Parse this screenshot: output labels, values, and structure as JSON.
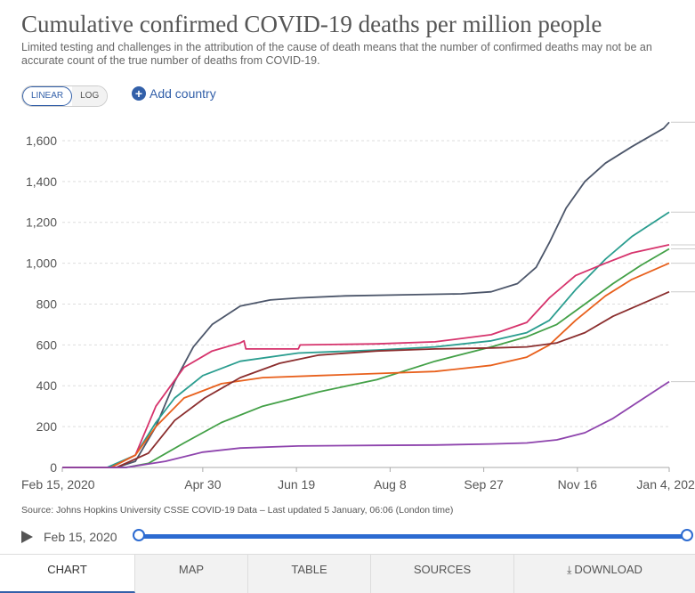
{
  "header": {
    "title": "Cumulative confirmed COVID-19 deaths per million people",
    "subtitle": "Limited testing and challenges in the attribution of the cause of death means that the number of confirmed deaths may not be an accurate count of the true number of deaths from COVID-19."
  },
  "controls": {
    "linear_label": "LINEAR",
    "log_label": "LOG",
    "add_country_label": "Add country",
    "active_scale": "linear"
  },
  "source_text": "Source: Johns Hopkins University CSSE COVID-19 Data – Last updated 5 January, 06:06 (London time)",
  "timeline": {
    "start_label": "Feb 15, 2020",
    "range_start": "2020-02-15",
    "range_end": "2021-01-04"
  },
  "tabs": [
    {
      "label": "CHART",
      "active": true
    },
    {
      "label": "MAP",
      "active": false
    },
    {
      "label": "TABLE",
      "active": false
    },
    {
      "label": "SOURCES",
      "active": false
    },
    {
      "label": "DOWNLOAD",
      "active": false
    }
  ],
  "colors": {
    "accent": "#3360a9",
    "grid": "#dddddd"
  },
  "chart_data": {
    "type": "line",
    "title": "Cumulative confirmed COVID-19 deaths per million people",
    "xlabel": "",
    "ylabel": "",
    "x_range": [
      "2020-02-15",
      "2021-01-04"
    ],
    "ylim": [
      0,
      1700
    ],
    "y_ticks": [
      0,
      200,
      400,
      600,
      800,
      1000,
      1200,
      1400,
      1600
    ],
    "y_tick_labels": [
      "0",
      "200",
      "400",
      "600",
      "800",
      "1,000",
      "1,200",
      "1,400",
      "1,600"
    ],
    "x_tick_labels": [
      "Feb 15, 2020",
      "Apr 30",
      "Jun 19",
      "Aug 8",
      "Sep 27",
      "Nov 16",
      "Jan 4, 2021"
    ],
    "x_tick_dates": [
      "2020-02-15",
      "2020-04-30",
      "2020-06-19",
      "2020-08-08",
      "2020-09-27",
      "2020-11-16",
      "2021-01-04"
    ],
    "grid": true,
    "series": [
      {
        "color": "#4c566a",
        "x": [
          "2020-02-15",
          "2020-03-15",
          "2020-03-25",
          "2020-04-05",
          "2020-04-15",
          "2020-04-25",
          "2020-05-05",
          "2020-05-20",
          "2020-06-05",
          "2020-06-20",
          "2020-07-15",
          "2020-08-15",
          "2020-09-15",
          "2020-10-01",
          "2020-10-15",
          "2020-10-25",
          "2020-11-01",
          "2020-11-10",
          "2020-11-20",
          "2020-12-01",
          "2020-12-15",
          "2021-01-01",
          "2021-01-04"
        ],
        "y": [
          0,
          0,
          30,
          200,
          420,
          590,
          700,
          790,
          820,
          830,
          840,
          845,
          850,
          860,
          900,
          980,
          1100,
          1270,
          1400,
          1490,
          1570,
          1660,
          1690
        ]
      },
      {
        "color": "#2a9d8f",
        "x": [
          "2020-02-15",
          "2020-03-10",
          "2020-03-25",
          "2020-04-05",
          "2020-04-15",
          "2020-04-30",
          "2020-05-20",
          "2020-06-20",
          "2020-08-01",
          "2020-09-01",
          "2020-10-01",
          "2020-10-20",
          "2020-11-01",
          "2020-11-15",
          "2020-12-01",
          "2020-12-15",
          "2021-01-04"
        ],
        "y": [
          0,
          0,
          60,
          220,
          340,
          450,
          520,
          560,
          575,
          590,
          620,
          660,
          720,
          870,
          1020,
          1130,
          1250
        ]
      },
      {
        "color": "#d6336c",
        "x": [
          "2020-02-15",
          "2020-03-12",
          "2020-03-25",
          "2020-04-05",
          "2020-04-20",
          "2020-05-05",
          "2020-05-20",
          "2020-05-22",
          "2020-05-23",
          "2020-06-20",
          "2020-06-21",
          "2020-08-01",
          "2020-09-01",
          "2020-10-01",
          "2020-10-20",
          "2020-11-01",
          "2020-11-15",
          "2020-12-01",
          "2020-12-15",
          "2021-01-04"
        ],
        "y": [
          0,
          0,
          60,
          300,
          490,
          570,
          610,
          620,
          580,
          580,
          600,
          605,
          615,
          650,
          710,
          830,
          940,
          1000,
          1050,
          1090
        ]
      },
      {
        "color": "#43a047",
        "x": [
          "2020-02-15",
          "2020-03-20",
          "2020-04-01",
          "2020-04-20",
          "2020-05-10",
          "2020-06-01",
          "2020-07-01",
          "2020-08-01",
          "2020-09-01",
          "2020-10-01",
          "2020-10-20",
          "2020-11-05",
          "2020-11-20",
          "2020-12-05",
          "2020-12-20",
          "2021-01-04"
        ],
        "y": [
          0,
          0,
          20,
          120,
          220,
          300,
          370,
          430,
          520,
          590,
          640,
          700,
          800,
          900,
          990,
          1070
        ]
      },
      {
        "color": "#e8601c",
        "x": [
          "2020-02-15",
          "2020-03-12",
          "2020-03-25",
          "2020-04-05",
          "2020-04-20",
          "2020-05-10",
          "2020-06-01",
          "2020-07-01",
          "2020-08-01",
          "2020-09-01",
          "2020-10-01",
          "2020-10-20",
          "2020-11-01",
          "2020-11-15",
          "2020-12-01",
          "2020-12-15",
          "2021-01-04"
        ],
        "y": [
          0,
          0,
          60,
          200,
          340,
          410,
          440,
          450,
          460,
          470,
          500,
          540,
          600,
          720,
          840,
          920,
          1000
        ]
      },
      {
        "color": "#8b2e2e",
        "x": [
          "2020-02-15",
          "2020-03-15",
          "2020-04-01",
          "2020-04-15",
          "2020-05-01",
          "2020-05-20",
          "2020-06-10",
          "2020-07-01",
          "2020-08-01",
          "2020-09-01",
          "2020-10-01",
          "2020-10-20",
          "2020-11-05",
          "2020-11-20",
          "2020-12-05",
          "2020-12-25",
          "2021-01-04"
        ],
        "y": [
          0,
          0,
          70,
          230,
          340,
          440,
          510,
          550,
          570,
          580,
          585,
          590,
          610,
          660,
          740,
          820,
          860
        ]
      },
      {
        "color": "#8e44ad",
        "x": [
          "2020-02-15",
          "2020-03-20",
          "2020-04-10",
          "2020-04-30",
          "2020-05-20",
          "2020-06-20",
          "2020-08-01",
          "2020-09-01",
          "2020-10-01",
          "2020-10-20",
          "2020-11-05",
          "2020-11-20",
          "2020-12-05",
          "2020-12-20",
          "2021-01-04"
        ],
        "y": [
          0,
          0,
          30,
          75,
          95,
          105,
          108,
          110,
          115,
          120,
          135,
          170,
          240,
          330,
          420
        ]
      }
    ]
  }
}
